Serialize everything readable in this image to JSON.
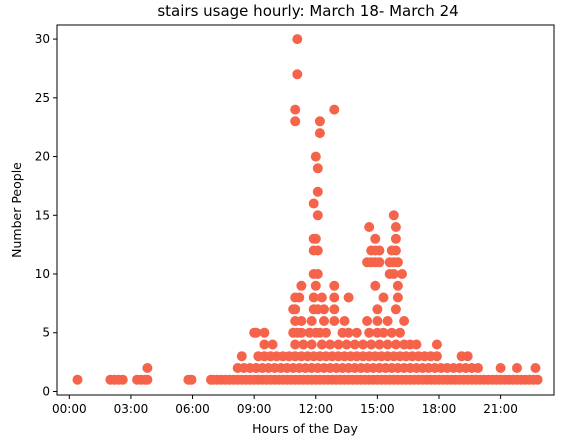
{
  "chart_data": {
    "type": "scatter",
    "title": "stairs usage hourly: March 18- March 24",
    "xlabel": "Hours of the Day",
    "ylabel": "Number People",
    "x_unit": "hours",
    "xlim": [
      -0.6,
      23.6
    ],
    "ylim": [
      -0.3,
      31.2
    ],
    "x_ticks": [
      {
        "value": 0,
        "label": "00:00"
      },
      {
        "value": 3,
        "label": "03:00"
      },
      {
        "value": 6,
        "label": "06:00"
      },
      {
        "value": 9,
        "label": "09:00"
      },
      {
        "value": 12,
        "label": "12:00"
      },
      {
        "value": 15,
        "label": "15:00"
      },
      {
        "value": 18,
        "label": "18:00"
      },
      {
        "value": 21,
        "label": "21:00"
      }
    ],
    "y_ticks": [
      {
        "value": 0,
        "label": "0"
      },
      {
        "value": 5,
        "label": "5"
      },
      {
        "value": 10,
        "label": "10"
      },
      {
        "value": 15,
        "label": "15"
      },
      {
        "value": 20,
        "label": "20"
      },
      {
        "value": 25,
        "label": "25"
      },
      {
        "value": 30,
        "label": "30"
      }
    ],
    "grid": false,
    "color": "#f4634a",
    "points": [
      [
        0.4,
        1
      ],
      [
        2.0,
        1
      ],
      [
        2.2,
        1
      ],
      [
        2.4,
        1
      ],
      [
        2.6,
        1
      ],
      [
        3.3,
        1
      ],
      [
        3.5,
        1
      ],
      [
        3.7,
        1
      ],
      [
        3.8,
        1
      ],
      [
        3.8,
        2
      ],
      [
        5.8,
        1
      ],
      [
        5.95,
        1
      ],
      [
        6.9,
        1
      ],
      [
        7.0,
        1
      ],
      [
        7.2,
        1
      ],
      [
        7.4,
        1
      ],
      [
        7.6,
        1
      ],
      [
        7.8,
        1
      ],
      [
        8.0,
        1
      ],
      [
        8.2,
        1
      ],
      [
        8.4,
        1
      ],
      [
        8.6,
        1
      ],
      [
        8.8,
        1
      ],
      [
        9.0,
        1
      ],
      [
        9.2,
        1
      ],
      [
        9.4,
        1
      ],
      [
        9.6,
        1
      ],
      [
        9.8,
        1
      ],
      [
        10.0,
        1
      ],
      [
        10.2,
        1
      ],
      [
        10.4,
        1
      ],
      [
        10.6,
        1
      ],
      [
        10.8,
        1
      ],
      [
        11.0,
        1
      ],
      [
        11.2,
        1
      ],
      [
        11.4,
        1
      ],
      [
        11.6,
        1
      ],
      [
        11.8,
        1
      ],
      [
        12.0,
        1
      ],
      [
        12.2,
        1
      ],
      [
        12.4,
        1
      ],
      [
        12.6,
        1
      ],
      [
        12.8,
        1
      ],
      [
        13.0,
        1
      ],
      [
        13.2,
        1
      ],
      [
        13.4,
        1
      ],
      [
        13.6,
        1
      ],
      [
        13.8,
        1
      ],
      [
        14.0,
        1
      ],
      [
        14.2,
        1
      ],
      [
        14.4,
        1
      ],
      [
        14.6,
        1
      ],
      [
        14.8,
        1
      ],
      [
        15.0,
        1
      ],
      [
        15.2,
        1
      ],
      [
        15.4,
        1
      ],
      [
        15.6,
        1
      ],
      [
        15.8,
        1
      ],
      [
        16.0,
        1
      ],
      [
        16.2,
        1
      ],
      [
        16.4,
        1
      ],
      [
        16.6,
        1
      ],
      [
        16.8,
        1
      ],
      [
        17.0,
        1
      ],
      [
        17.2,
        1
      ],
      [
        17.4,
        1
      ],
      [
        17.6,
        1
      ],
      [
        17.8,
        1
      ],
      [
        18.0,
        1
      ],
      [
        18.2,
        1
      ],
      [
        18.4,
        1
      ],
      [
        18.6,
        1
      ],
      [
        18.8,
        1
      ],
      [
        19.0,
        1
      ],
      [
        19.2,
        1
      ],
      [
        19.4,
        1
      ],
      [
        19.6,
        1
      ],
      [
        19.8,
        1
      ],
      [
        20.0,
        1
      ],
      [
        20.2,
        1
      ],
      [
        20.4,
        1
      ],
      [
        20.6,
        1
      ],
      [
        20.8,
        1
      ],
      [
        21.0,
        1
      ],
      [
        21.2,
        1
      ],
      [
        21.4,
        1
      ],
      [
        21.6,
        1
      ],
      [
        21.8,
        1
      ],
      [
        22.0,
        1
      ],
      [
        22.2,
        1
      ],
      [
        22.4,
        1
      ],
      [
        22.6,
        1
      ],
      [
        22.8,
        1
      ],
      [
        8.2,
        2
      ],
      [
        8.5,
        2
      ],
      [
        8.8,
        2
      ],
      [
        9.1,
        2
      ],
      [
        9.4,
        2
      ],
      [
        9.7,
        2
      ],
      [
        10.0,
        2
      ],
      [
        10.3,
        2
      ],
      [
        10.6,
        2
      ],
      [
        10.9,
        2
      ],
      [
        11.2,
        2
      ],
      [
        11.5,
        2
      ],
      [
        11.8,
        2
      ],
      [
        12.1,
        2
      ],
      [
        12.4,
        2
      ],
      [
        12.7,
        2
      ],
      [
        13.0,
        2
      ],
      [
        13.3,
        2
      ],
      [
        13.6,
        2
      ],
      [
        13.9,
        2
      ],
      [
        14.2,
        2
      ],
      [
        14.5,
        2
      ],
      [
        14.8,
        2
      ],
      [
        15.1,
        2
      ],
      [
        15.4,
        2
      ],
      [
        15.7,
        2
      ],
      [
        16.0,
        2
      ],
      [
        16.3,
        2
      ],
      [
        16.6,
        2
      ],
      [
        16.9,
        2
      ],
      [
        17.2,
        2
      ],
      [
        17.5,
        2
      ],
      [
        17.8,
        2
      ],
      [
        18.1,
        2
      ],
      [
        18.4,
        2
      ],
      [
        18.7,
        2
      ],
      [
        19.0,
        2
      ],
      [
        19.3,
        2
      ],
      [
        19.6,
        2
      ],
      [
        19.9,
        2
      ],
      [
        21.0,
        2
      ],
      [
        21.8,
        2
      ],
      [
        22.7,
        2
      ],
      [
        8.4,
        3
      ],
      [
        9.2,
        3
      ],
      [
        9.5,
        3
      ],
      [
        9.8,
        3
      ],
      [
        10.1,
        3
      ],
      [
        10.4,
        3
      ],
      [
        10.7,
        3
      ],
      [
        11.0,
        3
      ],
      [
        11.3,
        3
      ],
      [
        11.6,
        3
      ],
      [
        11.9,
        3
      ],
      [
        12.2,
        3
      ],
      [
        12.5,
        3
      ],
      [
        12.8,
        3
      ],
      [
        13.1,
        3
      ],
      [
        13.4,
        3
      ],
      [
        13.7,
        3
      ],
      [
        14.0,
        3
      ],
      [
        14.3,
        3
      ],
      [
        14.6,
        3
      ],
      [
        14.9,
        3
      ],
      [
        15.2,
        3
      ],
      [
        15.5,
        3
      ],
      [
        15.8,
        3
      ],
      [
        16.1,
        3
      ],
      [
        16.4,
        3
      ],
      [
        16.7,
        3
      ],
      [
        17.0,
        3
      ],
      [
        17.3,
        3
      ],
      [
        17.6,
        3
      ],
      [
        17.9,
        3
      ],
      [
        19.1,
        3
      ],
      [
        19.4,
        3
      ],
      [
        9.5,
        4
      ],
      [
        9.9,
        4
      ],
      [
        11.0,
        4
      ],
      [
        11.4,
        4
      ],
      [
        11.8,
        4
      ],
      [
        12.3,
        4
      ],
      [
        12.7,
        4
      ],
      [
        13.1,
        4
      ],
      [
        13.5,
        4
      ],
      [
        13.9,
        4
      ],
      [
        14.3,
        4
      ],
      [
        14.7,
        4
      ],
      [
        15.1,
        4
      ],
      [
        15.5,
        4
      ],
      [
        15.9,
        4
      ],
      [
        16.3,
        4
      ],
      [
        16.6,
        4
      ],
      [
        16.9,
        4
      ],
      [
        17.9,
        4
      ],
      [
        9.0,
        5
      ],
      [
        9.1,
        5
      ],
      [
        9.5,
        5
      ],
      [
        10.9,
        5
      ],
      [
        11.1,
        5
      ],
      [
        11.3,
        5
      ],
      [
        11.7,
        5
      ],
      [
        12.0,
        5
      ],
      [
        12.2,
        5
      ],
      [
        12.5,
        5
      ],
      [
        13.3,
        5
      ],
      [
        13.6,
        5
      ],
      [
        14.0,
        5
      ],
      [
        14.6,
        5
      ],
      [
        15.0,
        5
      ],
      [
        15.3,
        5
      ],
      [
        15.7,
        5
      ],
      [
        16.1,
        5
      ],
      [
        11.0,
        6
      ],
      [
        11.3,
        6
      ],
      [
        11.8,
        6
      ],
      [
        12.4,
        6
      ],
      [
        12.9,
        6
      ],
      [
        13.4,
        6
      ],
      [
        14.5,
        6
      ],
      [
        15.0,
        6
      ],
      [
        15.5,
        6
      ],
      [
        16.3,
        6
      ],
      [
        10.9,
        7
      ],
      [
        11.0,
        7
      ],
      [
        11.9,
        7
      ],
      [
        12.1,
        7
      ],
      [
        12.4,
        7
      ],
      [
        12.9,
        7
      ],
      [
        15.0,
        7
      ],
      [
        15.9,
        7
      ],
      [
        11.0,
        8
      ],
      [
        11.2,
        8
      ],
      [
        11.9,
        8
      ],
      [
        12.3,
        8
      ],
      [
        12.9,
        8
      ],
      [
        13.6,
        8
      ],
      [
        15.3,
        8
      ],
      [
        16.0,
        8
      ],
      [
        11.3,
        9
      ],
      [
        12.0,
        9
      ],
      [
        12.9,
        9
      ],
      [
        14.9,
        9
      ],
      [
        16.0,
        9
      ],
      [
        11.9,
        10
      ],
      [
        12.1,
        10
      ],
      [
        15.6,
        10
      ],
      [
        15.8,
        10
      ],
      [
        16.2,
        10
      ],
      [
        14.5,
        11
      ],
      [
        14.7,
        11
      ],
      [
        14.9,
        11
      ],
      [
        15.1,
        11
      ],
      [
        15.6,
        11
      ],
      [
        15.8,
        11
      ],
      [
        16.0,
        11
      ],
      [
        14.7,
        12
      ],
      [
        14.9,
        12
      ],
      [
        15.1,
        12
      ],
      [
        15.7,
        12
      ],
      [
        15.9,
        12
      ],
      [
        11.9,
        12
      ],
      [
        12.1,
        12
      ],
      [
        11.9,
        13
      ],
      [
        12.0,
        13
      ],
      [
        14.9,
        13
      ],
      [
        15.9,
        13
      ],
      [
        14.6,
        14
      ],
      [
        15.9,
        14
      ],
      [
        12.1,
        15
      ],
      [
        15.8,
        15
      ],
      [
        11.9,
        16
      ],
      [
        12.1,
        17
      ],
      [
        12.1,
        19
      ],
      [
        12.0,
        20
      ],
      [
        12.2,
        22
      ],
      [
        11.0,
        23
      ],
      [
        12.2,
        23
      ],
      [
        11.0,
        24
      ],
      [
        12.9,
        24
      ],
      [
        11.1,
        27
      ],
      [
        11.1,
        30
      ]
    ]
  }
}
